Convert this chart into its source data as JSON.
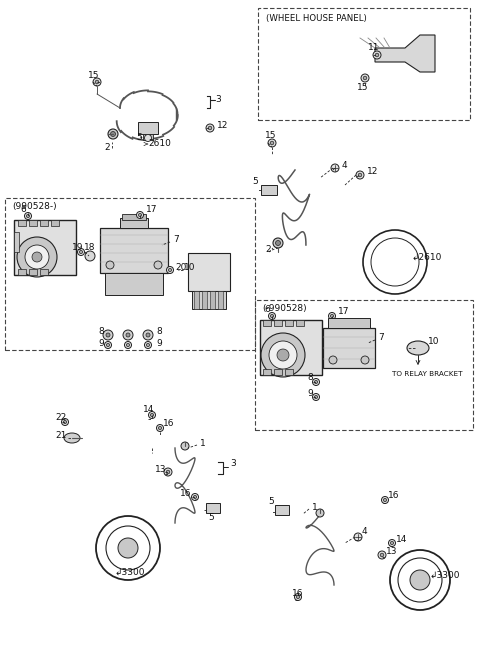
{
  "bg_color": "#ffffff",
  "line_color": "#222222",
  "text_color": "#111111",
  "dash_color": "#444444",
  "fig_width": 4.8,
  "fig_height": 6.55,
  "dpi": 100
}
